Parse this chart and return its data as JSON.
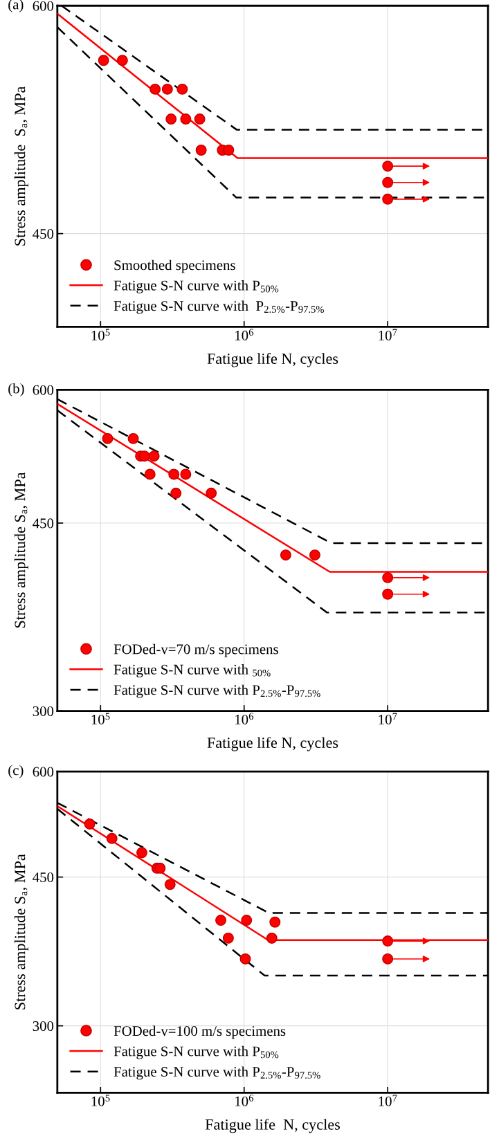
{
  "chart_data": [
    {
      "type": "scatter",
      "title": "(a)",
      "xlabel": "Fatigue life N, cycles",
      "ylabel": "Stress amplitude  S$_{a}$, MPa",
      "log": "xy",
      "grid": true,
      "legend": "bottom left",
      "xlim": [
        50000,
        50000000
      ],
      "ylim": [
        400,
        600
      ],
      "xticks": [
        {
          "value": 100000,
          "label": "10$^{5}$"
        },
        {
          "value": 1000000,
          "label": "10$^{6}$"
        },
        {
          "value": 10000000,
          "label": "10$^{7}$"
        }
      ],
      "yticks": [
        450,
        600
      ],
      "series": [
        {
          "name": "Smoothed specimens",
          "marker": "circle",
          "color": "#ff0000",
          "x": [
            105000,
            142000,
            240000,
            292000,
            371000,
            310000,
            392000,
            491000,
            502000,
            706000,
            780000
          ],
          "values": [
            560,
            560,
            540,
            540,
            540,
            520,
            520,
            520,
            500,
            500,
            500
          ]
        },
        {
          "marker": "circle",
          "color": "#ff0000",
          "x": [
            10000000,
            10000000,
            10000000
          ],
          "values": [
            490,
            480,
            470
          ]
        },
        {
          "name": "Fatigue S-N curve with P$_{50%}$",
          "type": "line",
          "color": "#ff0000",
          "line_style": "solid",
          "x": [
            50000,
            900000,
            50000000
          ],
          "values": [
            594,
            495,
            495
          ]
        },
        {
          "name": "Fatigue S-N curve with  P$_{2.5%}$-P$_{97.5%}$",
          "type": "line",
          "color": "#000000",
          "line_style": "dashed",
          "x": [
            53500,
            890000,
            50000000
          ],
          "values": [
            600,
            513,
            513
          ]
        },
        {
          "type": "line",
          "color": "#000000",
          "line_style": "dashed",
          "x": [
            50000,
            880000,
            50000000
          ],
          "values": [
            584,
            471,
            471
          ]
        }
      ]
    },
    {
      "type": "scatter",
      "title": "(b)",
      "xlabel": "Fatigue life N, cycles",
      "ylabel": "Stress amplitude S$_{a}$, MPa",
      "log": "xy",
      "grid": true,
      "legend": "bottom left",
      "xlim": [
        50000,
        50000000
      ],
      "ylim": [
        300,
        600
      ],
      "xticks": [
        {
          "value": 100000,
          "label": "10$^{5}$"
        },
        {
          "value": 1000000,
          "label": "10$^{6}$"
        },
        {
          "value": 10000000,
          "label": "10$^{7}$"
        }
      ],
      "yticks": [
        300,
        450,
        600
      ],
      "series": [
        {
          "name": "FODed-v=70 m/s specimens",
          "marker": "circle",
          "color": "#ff0000",
          "x": [
            112000,
            169000,
            190000,
            202000,
            236000,
            221000,
            324000,
            392000,
            335000,
            590000,
            1950000,
            3110000
          ],
          "values": [
            540,
            540,
            520,
            520,
            520,
            500,
            500,
            500,
            480,
            480,
            420,
            420
          ]
        },
        {
          "marker": "circle",
          "color": "#ff0000",
          "x": [
            10000000,
            10000000
          ],
          "values": [
            400,
            386
          ]
        },
        {
          "name": "Fatigue S-N curve with $_{50%}$",
          "type": "line",
          "color": "#ff0000",
          "line_style": "solid",
          "x": [
            50000,
            3950000,
            50000000
          ],
          "values": [
            582,
            405,
            405
          ]
        },
        {
          "name": "Fatigue S-N curve with P$_{2.5%}$-P$_{97.5%}$",
          "type": "line",
          "color": "#000000",
          "line_style": "dashed",
          "x": [
            50000,
            4040000,
            50000000
          ],
          "values": [
            588,
            431,
            431
          ]
        },
        {
          "type": "line",
          "color": "#000000",
          "line_style": "dashed",
          "x": [
            50000,
            3770000,
            50000000
          ],
          "values": [
            574,
            371,
            371
          ]
        }
      ]
    },
    {
      "type": "scatter",
      "title": "(c)",
      "xlabel": "Fatigue life  N, cycles",
      "ylabel": "Stress amplitude S$_{a}$, MPa",
      "log": "xy",
      "grid": true,
      "legend": "bottom left",
      "xlim": [
        50000,
        50000000
      ],
      "ylim": [
        250,
        600
      ],
      "xticks": [
        {
          "value": 100000,
          "label": "10$^{5}$"
        },
        {
          "value": 1000000,
          "label": "10$^{6}$"
        },
        {
          "value": 10000000,
          "label": "10$^{7}$"
        }
      ],
      "yticks": [
        300,
        450,
        600
      ],
      "series": [
        {
          "name": "FODed-v=100 m/s specimens",
          "marker": "circle",
          "color": "#ff0000",
          "x": [
            84000,
            120000,
            194000,
            247000,
            260000,
            305000,
            688000,
            1040000,
            1640000,
            776000,
            1560000,
            1020000
          ],
          "values": [
            520,
            500,
            481,
            461,
            461,
            441,
            400,
            400,
            398,
            381,
            381,
            360
          ]
        },
        {
          "marker": "circle",
          "color": "#ff0000",
          "x": [
            10000000,
            10000000
          ],
          "values": [
            378,
            360
          ]
        },
        {
          "name": "Fatigue S-N curve with P$_{50%}$",
          "type": "line",
          "color": "#ff0000",
          "line_style": "solid",
          "x": [
            50000,
            1470000,
            50000000
          ],
          "values": [
            546,
            379,
            379
          ]
        },
        {
          "name": "Fatigue S-N curve with P$_{2.5%}$-P$_{97.5%}$",
          "type": "line",
          "color": "#000000",
          "line_style": "dashed",
          "x": [
            50000,
            1490000,
            50000000
          ],
          "values": [
            551,
            408,
            408
          ]
        },
        {
          "type": "line",
          "color": "#000000",
          "line_style": "dashed",
          "x": [
            50000,
            1390000,
            50000000
          ],
          "values": [
            542,
            344,
            344
          ]
        }
      ]
    }
  ]
}
